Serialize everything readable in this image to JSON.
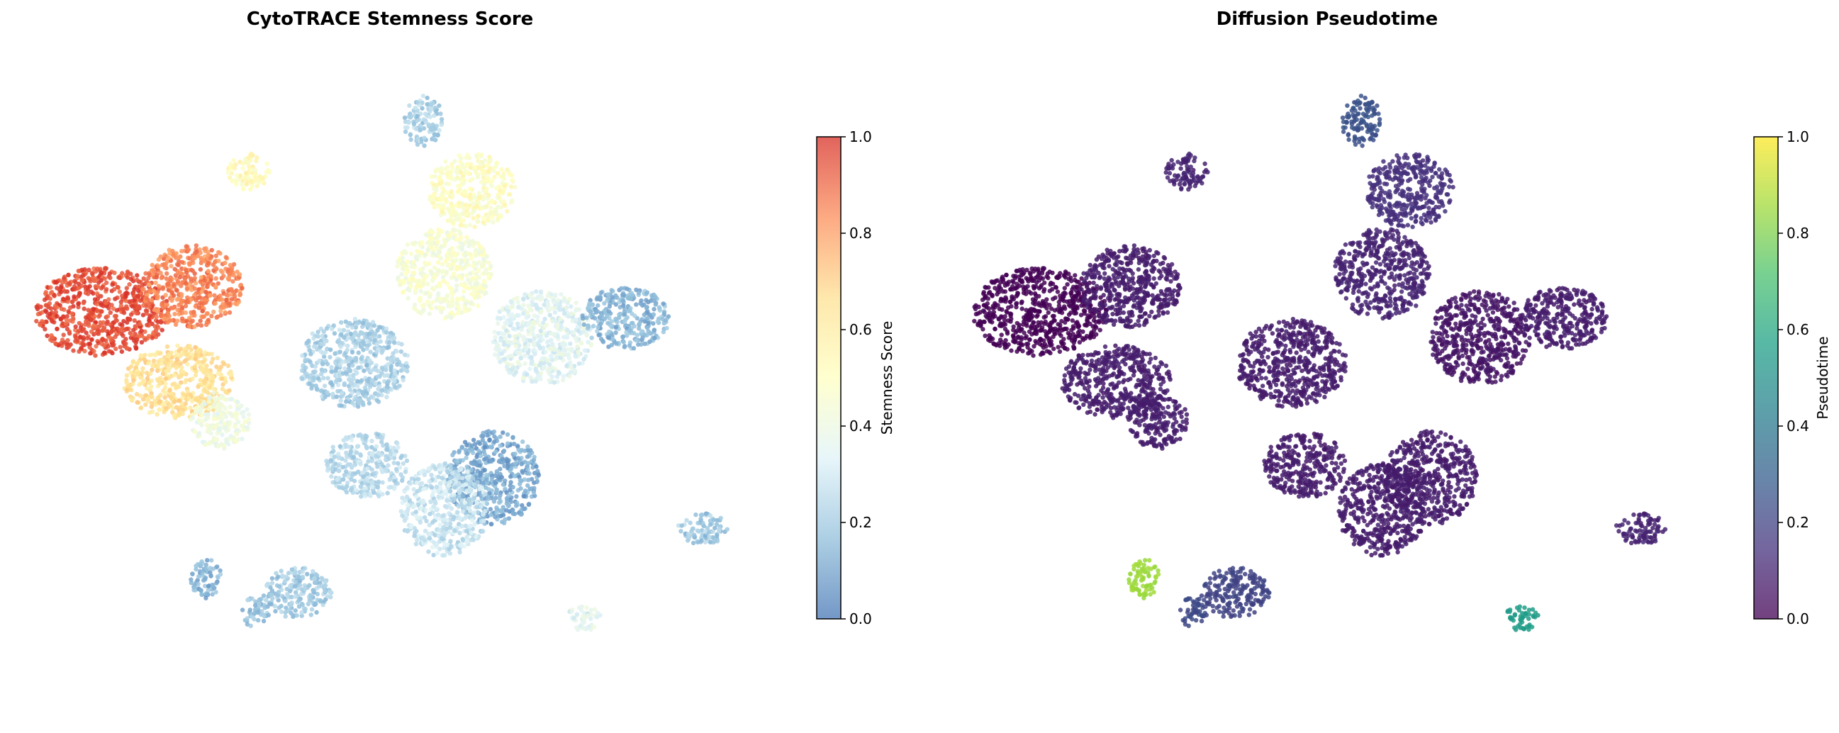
{
  "chart_data": [
    {
      "type": "scatter",
      "title": "CytoTRACE Stemness Score",
      "xlabel": "",
      "ylabel": "",
      "grid": false,
      "colormap": "RdYlBu_r",
      "colors": [
        "#4575b4",
        "#91bfdb",
        "#e0f3f8",
        "#ffffbf",
        "#fee090",
        "#fc8d59",
        "#d73027"
      ],
      "colorbar": {
        "label": "Stemness Score",
        "range": [
          0.0,
          1.0
        ],
        "ticks": [
          "0.0",
          "0.2",
          "0.4",
          "0.6",
          "0.8",
          "1.0"
        ]
      },
      "clusters": [
        {
          "x": 0.09,
          "y": 0.4,
          "value": 0.95
        },
        {
          "x": 0.22,
          "y": 0.36,
          "value": 0.85
        },
        {
          "x": 0.2,
          "y": 0.51,
          "value": 0.65
        },
        {
          "x": 0.26,
          "y": 0.57,
          "value": 0.4
        },
        {
          "x": 0.37,
          "y": 0.84,
          "value": 0.2
        },
        {
          "x": 0.31,
          "y": 0.87,
          "value": 0.18
        },
        {
          "x": 0.47,
          "y": 0.64,
          "value": 0.25
        },
        {
          "x": 0.65,
          "y": 0.66,
          "value": 0.12
        },
        {
          "x": 0.45,
          "y": 0.48,
          "value": 0.22
        },
        {
          "x": 0.58,
          "y": 0.71,
          "value": 0.28
        },
        {
          "x": 0.72,
          "y": 0.44,
          "value": 0.35
        },
        {
          "x": 0.58,
          "y": 0.34,
          "value": 0.45
        },
        {
          "x": 0.62,
          "y": 0.21,
          "value": 0.5
        },
        {
          "x": 0.55,
          "y": 0.1,
          "value": 0.22
        },
        {
          "x": 0.3,
          "y": 0.18,
          "value": 0.52
        },
        {
          "x": 0.84,
          "y": 0.41,
          "value": 0.15
        },
        {
          "x": 0.95,
          "y": 0.74,
          "value": 0.2
        },
        {
          "x": 0.78,
          "y": 0.88,
          "value": 0.35
        },
        {
          "x": 0.24,
          "y": 0.82,
          "value": 0.14
        }
      ]
    },
    {
      "type": "scatter",
      "title": "Diffusion Pseudotime",
      "xlabel": "",
      "ylabel": "",
      "grid": false,
      "colormap": "viridis",
      "colors": [
        "#440154",
        "#46327e",
        "#365c8d",
        "#277f8e",
        "#1fa187",
        "#4ac16d",
        "#a0da39",
        "#fde725"
      ],
      "colorbar": {
        "label": "Pseudotime",
        "range": [
          0.0,
          1.0
        ],
        "ticks": [
          "0.0",
          "0.2",
          "0.4",
          "0.6",
          "0.8",
          "1.0"
        ]
      },
      "clusters": [
        {
          "x": 0.09,
          "y": 0.4,
          "value": 0.0
        },
        {
          "x": 0.22,
          "y": 0.36,
          "value": 0.08
        },
        {
          "x": 0.2,
          "y": 0.51,
          "value": 0.08
        },
        {
          "x": 0.26,
          "y": 0.57,
          "value": 0.08
        },
        {
          "x": 0.37,
          "y": 0.84,
          "value": 0.2
        },
        {
          "x": 0.31,
          "y": 0.87,
          "value": 0.22
        },
        {
          "x": 0.47,
          "y": 0.64,
          "value": 0.08
        },
        {
          "x": 0.65,
          "y": 0.66,
          "value": 0.08
        },
        {
          "x": 0.45,
          "y": 0.48,
          "value": 0.08
        },
        {
          "x": 0.58,
          "y": 0.71,
          "value": 0.08
        },
        {
          "x": 0.72,
          "y": 0.44,
          "value": 0.06
        },
        {
          "x": 0.58,
          "y": 0.34,
          "value": 0.1
        },
        {
          "x": 0.62,
          "y": 0.21,
          "value": 0.14
        },
        {
          "x": 0.55,
          "y": 0.1,
          "value": 0.25
        },
        {
          "x": 0.3,
          "y": 0.18,
          "value": 0.1
        },
        {
          "x": 0.84,
          "y": 0.41,
          "value": 0.08
        },
        {
          "x": 0.95,
          "y": 0.74,
          "value": 0.1
        },
        {
          "x": 0.78,
          "y": 0.88,
          "value": 0.55
        },
        {
          "x": 0.24,
          "y": 0.82,
          "value": 0.85
        }
      ]
    }
  ]
}
